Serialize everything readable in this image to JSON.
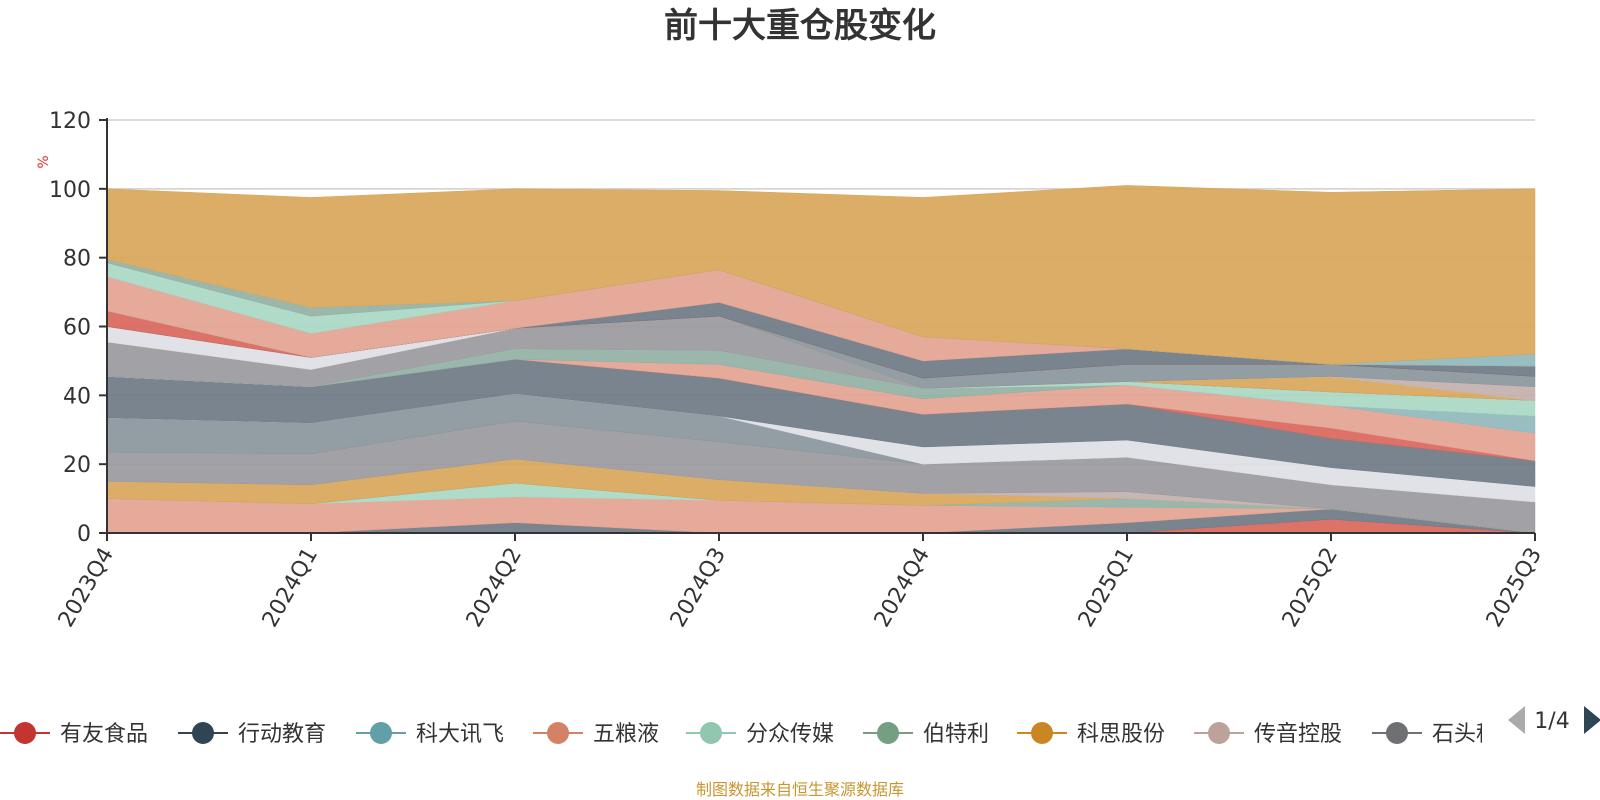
{
  "chart_data": {
    "type": "area",
    "title": "前十大重仓股变化",
    "ylabel": "%",
    "ylim": [
      0,
      120
    ],
    "yticks": [
      0,
      20,
      40,
      60,
      80,
      100,
      120
    ],
    "categories": [
      "2023Q4",
      "2024Q1",
      "2024Q2",
      "2024Q3",
      "2024Q4",
      "2025Q1",
      "2025Q2",
      "2025Q3"
    ],
    "grid": true,
    "legend_position": "bottom",
    "layers": [
      {
        "color": "#6f7a85",
        "values": [
          0,
          0,
          3,
          0,
          0,
          0,
          0,
          0
        ]
      },
      {
        "color": "#d9665b",
        "values": [
          0,
          0,
          0,
          0,
          0,
          0,
          4,
          0
        ]
      },
      {
        "color": "#6f7a85",
        "values": [
          0,
          0,
          0,
          0,
          0,
          3,
          3,
          0
        ]
      },
      {
        "color": "#e4a392",
        "values": [
          10,
          8.5,
          7.5,
          9.5,
          8,
          4.5,
          0,
          0
        ]
      },
      {
        "color": "#a9d8c3",
        "values": [
          0,
          0,
          4,
          0,
          0,
          0,
          0,
          0
        ]
      },
      {
        "color": "#92b1a4",
        "values": [
          0,
          0,
          0,
          0,
          0,
          2.5,
          0,
          0
        ]
      },
      {
        "color": "#d8a659",
        "values": [
          5,
          5.5,
          7,
          6,
          3.5,
          0,
          0,
          0
        ]
      },
      {
        "color": "#c2b0ad",
        "values": [
          0,
          0,
          0,
          0,
          0,
          2,
          0,
          0
        ]
      },
      {
        "color": "#9a9a9e",
        "values": [
          8.5,
          9,
          11,
          11,
          8.5,
          10,
          7,
          9
        ]
      },
      {
        "color": "#8a959c",
        "values": [
          10,
          9,
          8,
          7.5,
          0,
          0,
          0,
          0
        ]
      },
      {
        "color": "#dde0e6",
        "values": [
          0,
          0,
          0,
          0,
          5,
          5,
          5,
          4.5
        ]
      },
      {
        "color": "#6f7a85",
        "values": [
          12,
          10.5,
          10,
          11,
          9.5,
          10.5,
          8.5,
          7.5
        ]
      },
      {
        "color": "#d9665b",
        "values": [
          0,
          0,
          0,
          0,
          0,
          0,
          3,
          0
        ]
      },
      {
        "color": "#e4a392",
        "values": [
          0,
          0,
          0,
          4,
          4.5,
          5.5,
          6.5,
          8
        ]
      },
      {
        "color": "#8fb8bc",
        "values": [
          0,
          0,
          0,
          0,
          0,
          0,
          0,
          5
        ]
      },
      {
        "color": "#92b1a4",
        "values": [
          0,
          0,
          3,
          4,
          3,
          0,
          0,
          0
        ]
      },
      {
        "color": "#a9d8c3",
        "values": [
          0,
          0,
          0,
          0,
          0,
          1,
          4,
          4.5
        ]
      },
      {
        "color": "#9a9a9e",
        "values": [
          10,
          5,
          6,
          10,
          0,
          0,
          0,
          0
        ]
      },
      {
        "color": "#d8a659",
        "values": [
          0,
          0,
          0,
          0,
          0,
          0,
          4.5,
          0
        ]
      },
      {
        "color": "#dde0e6",
        "values": [
          4.5,
          3.5,
          0,
          0,
          0,
          0,
          0,
          0
        ]
      },
      {
        "color": "#c2b0ad",
        "values": [
          0,
          0,
          0,
          0,
          0,
          0,
          0,
          4
        ]
      },
      {
        "color": "#8a959c",
        "values": [
          0,
          0,
          0,
          0,
          3,
          5,
          3.5,
          3
        ]
      },
      {
        "color": "#d9665b",
        "values": [
          4.5,
          0,
          0,
          0,
          0,
          0,
          0,
          0
        ]
      },
      {
        "color": "#6f7a85",
        "values": [
          0,
          0,
          0,
          4,
          5,
          4.5,
          0,
          3
        ]
      },
      {
        "color": "#e4a392",
        "values": [
          10,
          7,
          8,
          9.5,
          7,
          0,
          0,
          0
        ]
      },
      {
        "color": "#8fb8bc",
        "values": [
          0,
          0,
          0,
          0,
          0,
          0,
          0,
          3.5
        ]
      },
      {
        "color": "#a9d8c3",
        "values": [
          4,
          5,
          0,
          0,
          0,
          0,
          0,
          0
        ]
      },
      {
        "color": "#92b1a4",
        "values": [
          1,
          2.5,
          0,
          0,
          0,
          0,
          0,
          0
        ]
      },
      {
        "color": "#d8a659",
        "values": [
          20.5,
          32,
          32.5,
          23,
          40.5,
          47.5,
          50,
          48
        ]
      }
    ]
  },
  "legend": {
    "items": [
      {
        "label": "有友食品",
        "color": "#c23531"
      },
      {
        "label": "行动教育",
        "color": "#2f4554"
      },
      {
        "label": "科大讯飞",
        "color": "#61a0a8"
      },
      {
        "label": "五粮液",
        "color": "#d48265"
      },
      {
        "label": "分众传媒",
        "color": "#91c7ae"
      },
      {
        "label": "伯特利",
        "color": "#749f83"
      },
      {
        "label": "科思股份",
        "color": "#ca8622"
      },
      {
        "label": "传音控股",
        "color": "#bda29a"
      },
      {
        "label": "石头科技",
        "color": "#6e7074"
      }
    ],
    "page": "1/4"
  },
  "source": "制图数据来自恒生聚源数据库"
}
